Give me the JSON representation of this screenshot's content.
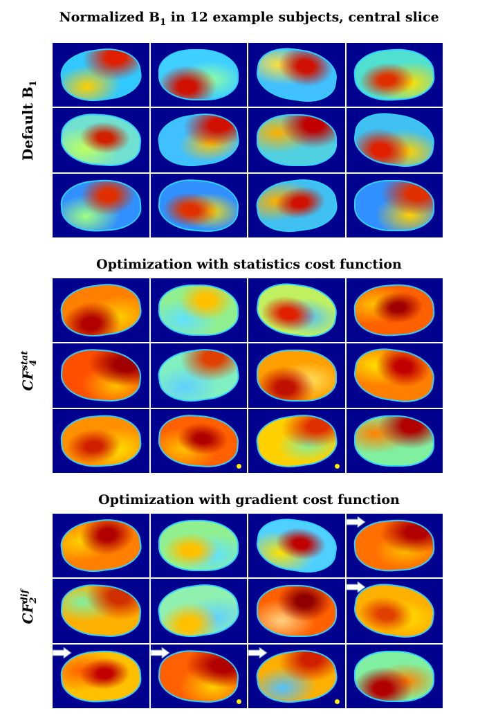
{
  "panels": [
    {
      "title": "Normalized B",
      "title_sub": "1",
      "title_rest": " in 12 example  subjects, central slice",
      "label": "Default B",
      "label_sub": "1",
      "label_sup": "",
      "cells": [
        {
          "base": "#30c8ff",
          "hot": "#e02000",
          "warm": "#ffd000"
        },
        {
          "base": "#40d0ff",
          "hot": "#d01000",
          "warm": "#90ffa0"
        },
        {
          "base": "#40c0ff",
          "hot": "#d01000",
          "warm": "#ffe040"
        },
        {
          "base": "#50e0d0",
          "hot": "#e03000",
          "warm": "#ffe000"
        },
        {
          "base": "#70e0d0",
          "hot": "#d02000",
          "warm": "#c0ff60"
        },
        {
          "base": "#40c0ff",
          "hot": "#d01000",
          "warm": "#ffc000"
        },
        {
          "base": "#50d0e0",
          "hot": "#c00000",
          "warm": "#ffb000"
        },
        {
          "base": "#40c0f0",
          "hot": "#e02000",
          "warm": "#ffd000"
        },
        {
          "base": "#3090ff",
          "hot": "#e03000",
          "warm": "#a0ff80"
        },
        {
          "base": "#3090ff",
          "hot": "#e03000",
          "warm": "#ffe000"
        },
        {
          "base": "#40c0f0",
          "hot": "#d01000",
          "warm": "#ffb000"
        },
        {
          "base": "#3090ff",
          "hot": "#e03000",
          "warm": "#ffd000"
        }
      ]
    },
    {
      "title": "Optimization with statistics cost function",
      "title_sub": "",
      "title_rest": "",
      "label": "CF",
      "label_sub": "4",
      "label_sup": "stat",
      "cells": [
        {
          "base": "#ff8000",
          "hot": "#b00000",
          "warm": "#ffd000"
        },
        {
          "base": "#90f090",
          "hot": "#ffc000",
          "warm": "#60e0ff"
        },
        {
          "base": "#c0f060",
          "hot": "#e02000",
          "warm": "#50c0ff"
        },
        {
          "base": "#ff6000",
          "hot": "#a00000",
          "warm": "#ffc000"
        },
        {
          "base": "#ff5000",
          "hot": "#a00000",
          "warm": "#ffc000"
        },
        {
          "base": "#80f0c0",
          "hot": "#e04000",
          "warm": "#60d0ff"
        },
        {
          "base": "#ffa000",
          "hot": "#c01000",
          "warm": "#ffe060"
        },
        {
          "base": "#ff8000",
          "hot": "#c00000",
          "warm": "#ffe000"
        },
        {
          "base": "#ff9000",
          "hot": "#d02000",
          "warm": "#ffe000"
        },
        {
          "base": "#ff6000",
          "hot": "#b00000",
          "warm": "#ffc000"
        },
        {
          "base": "#ffd000",
          "hot": "#e03000",
          "warm": "#80f0a0"
        },
        {
          "base": "#80f0a0",
          "hot": "#b00000",
          "warm": "#ff8000"
        }
      ],
      "dots": [
        9,
        10
      ],
      "arrows": []
    },
    {
      "title": "Optimization with gradient cost function",
      "title_sub": "",
      "title_rest": "",
      "label": "CF",
      "label_sub": "2",
      "label_sup": "dif",
      "cells": [
        {
          "base": "#ff8000",
          "hot": "#b00000",
          "warm": "#ffd000"
        },
        {
          "base": "#90f090",
          "hot": "#ffc000",
          "warm": "#60e0ff"
        },
        {
          "base": "#50d0ff",
          "hot": "#c00000",
          "warm": "#ffe000"
        },
        {
          "base": "#ff7000",
          "hot": "#b00000",
          "warm": "#ffc000"
        },
        {
          "base": "#ffb000",
          "hot": "#d03000",
          "warm": "#80f0a0"
        },
        {
          "base": "#90f0b0",
          "hot": "#ffc000",
          "warm": "#60d0ff"
        },
        {
          "base": "#ff6000",
          "hot": "#900000",
          "warm": "#ffd080"
        },
        {
          "base": "#ffb000",
          "hot": "#e04000",
          "warm": "#ffe000"
        },
        {
          "base": "#ffc000",
          "hot": "#c00000",
          "warm": "#ff6000"
        },
        {
          "base": "#ff6000",
          "hot": "#b00000",
          "warm": "#ffd000"
        },
        {
          "base": "#ffb000",
          "hot": "#d02000",
          "warm": "#50c0ff"
        },
        {
          "base": "#80f0a0",
          "hot": "#b00000",
          "warm": "#ff8000"
        }
      ],
      "dots": [
        9,
        10
      ],
      "arrows": [
        3,
        7,
        8,
        9,
        10
      ]
    }
  ],
  "dots": [],
  "arrows": []
}
